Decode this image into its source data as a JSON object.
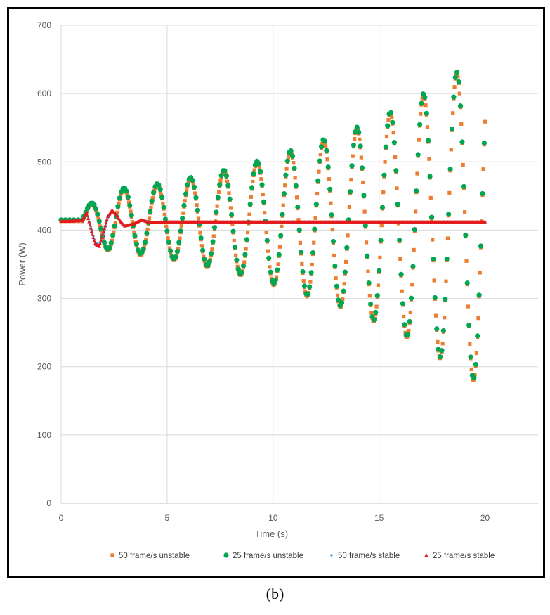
{
  "caption": "(b)",
  "chart_data": {
    "type": "scatter",
    "xlabel": "Time (s)",
    "ylabel": "Power (W)",
    "xlim": [
      0,
      22.5
    ],
    "ylim": [
      0,
      700
    ],
    "xticks": [
      0,
      5,
      10,
      15,
      20
    ],
    "yticks": [
      0,
      100,
      200,
      300,
      400,
      500,
      600,
      700
    ],
    "grid": true,
    "legend_position": "bottom",
    "series": [
      {
        "name": "50 frame/s unstable",
        "color": "#ED7D31",
        "marker": "square",
        "baseline": 413,
        "start": 1.0,
        "end": 20.0,
        "period": 1.57,
        "step": 0.04,
        "envelope": [
          [
            1.0,
            15
          ],
          [
            2.3,
            45
          ],
          [
            4.0,
            50
          ],
          [
            5.5,
            58
          ],
          [
            7.0,
            68
          ],
          [
            8.6,
            80
          ],
          [
            10.2,
            95
          ],
          [
            11.8,
            112
          ],
          [
            13.4,
            128
          ],
          [
            15.0,
            150
          ],
          [
            16.6,
            175
          ],
          [
            18.1,
            205
          ],
          [
            19.8,
            240
          ],
          [
            20.0,
            244
          ]
        ],
        "points": [
          [
            0.0,
            413
          ],
          [
            0.2,
            413
          ],
          [
            0.4,
            413
          ],
          [
            0.6,
            413
          ],
          [
            0.8,
            413
          ],
          [
            1.0,
            413
          ]
        ]
      },
      {
        "name": "25 frame/s unstable",
        "color": "#00A651",
        "marker": "circle",
        "baseline": 415,
        "start": 1.0,
        "end": 20.0,
        "period": 1.57,
        "step": 0.08,
        "envelope": [
          [
            1.0,
            15
          ],
          [
            2.3,
            45
          ],
          [
            4.0,
            50
          ],
          [
            5.5,
            58
          ],
          [
            7.0,
            68
          ],
          [
            8.6,
            80
          ],
          [
            10.2,
            95
          ],
          [
            11.8,
            112
          ],
          [
            13.4,
            128
          ],
          [
            15.0,
            150
          ],
          [
            16.6,
            175
          ],
          [
            18.1,
            205
          ],
          [
            19.8,
            240
          ],
          [
            20.0,
            244
          ]
        ],
        "points": [
          [
            0.0,
            415
          ],
          [
            0.2,
            415
          ],
          [
            0.4,
            415
          ],
          [
            0.6,
            415
          ],
          [
            0.8,
            415
          ],
          [
            1.0,
            415
          ]
        ]
      },
      {
        "name": "50 frame/s stable",
        "color": "#5B9BD5",
        "marker": "diamond",
        "points": [
          [
            0.0,
            413
          ],
          [
            0.5,
            413
          ],
          [
            1.0,
            414
          ],
          [
            1.2,
            424
          ],
          [
            1.4,
            405
          ],
          [
            1.6,
            382
          ],
          [
            1.8,
            378
          ],
          [
            2.0,
            395
          ],
          [
            2.2,
            418
          ],
          [
            2.4,
            427
          ],
          [
            2.6,
            422
          ],
          [
            2.8,
            412
          ],
          [
            3.0,
            406
          ],
          [
            3.4,
            409
          ],
          [
            3.8,
            414
          ],
          [
            4.2,
            411
          ],
          [
            5.0,
            412
          ],
          [
            6.0,
            412
          ],
          [
            8.0,
            412
          ],
          [
            10.0,
            412
          ],
          [
            12.0,
            412
          ],
          [
            14.0,
            412
          ],
          [
            16.0,
            412
          ],
          [
            18.0,
            412
          ],
          [
            20.0,
            412
          ]
        ]
      },
      {
        "name": "25 frame/s stable",
        "color": "#E31A1C",
        "marker": "triangle",
        "points": [
          [
            0.0,
            413
          ],
          [
            0.5,
            413
          ],
          [
            1.0,
            414
          ],
          [
            1.2,
            426
          ],
          [
            1.4,
            403
          ],
          [
            1.6,
            380
          ],
          [
            1.8,
            376
          ],
          [
            2.0,
            398
          ],
          [
            2.2,
            420
          ],
          [
            2.4,
            429
          ],
          [
            2.6,
            423
          ],
          [
            2.8,
            413
          ],
          [
            3.0,
            406
          ],
          [
            3.4,
            409
          ],
          [
            3.8,
            415
          ],
          [
            4.2,
            411
          ],
          [
            5.0,
            412
          ],
          [
            6.0,
            412
          ],
          [
            8.0,
            412
          ],
          [
            10.0,
            412
          ],
          [
            12.0,
            412
          ],
          [
            14.0,
            412
          ],
          [
            16.0,
            412
          ],
          [
            18.0,
            412
          ],
          [
            20.0,
            412
          ]
        ]
      }
    ]
  }
}
